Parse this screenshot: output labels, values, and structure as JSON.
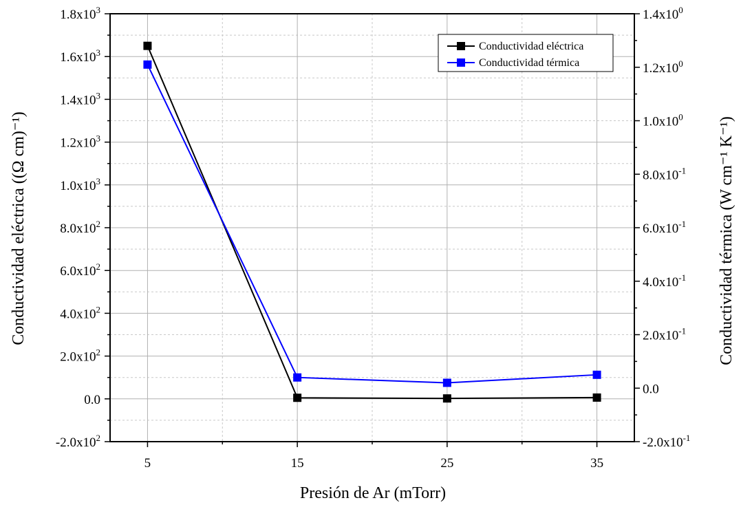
{
  "chart_data": {
    "type": "line",
    "x": [
      5,
      15,
      25,
      35
    ],
    "xlabel": "Presión de Ar (mTorr)",
    "x_ticks": [
      {
        "value": 5,
        "label": "5"
      },
      {
        "value": 15,
        "label": "15"
      },
      {
        "value": 25,
        "label": "25"
      },
      {
        "value": 35,
        "label": "35"
      }
    ],
    "xlim": [
      2.5,
      37.5
    ],
    "ylabel_left": "Conductividad eléctrica ((Ω cm)⁻¹)",
    "ylabel_right": "Conductividad térmica (W cm⁻¹ K⁻¹)",
    "ylim_left": [
      -200,
      1800
    ],
    "ylim_right": [
      -0.2,
      1.4
    ],
    "y_left_ticks": [
      {
        "value": 1800,
        "mant": "1.8x10",
        "exp": "3"
      },
      {
        "value": 1600,
        "mant": "1.6x10",
        "exp": "3"
      },
      {
        "value": 1400,
        "mant": "1.4x10",
        "exp": "3"
      },
      {
        "value": 1200,
        "mant": "1.2x10",
        "exp": "3"
      },
      {
        "value": 1000,
        "mant": "1.0x10",
        "exp": "3"
      },
      {
        "value": 800,
        "mant": "8.0x10",
        "exp": "2"
      },
      {
        "value": 600,
        "mant": "6.0x10",
        "exp": "2"
      },
      {
        "value": 400,
        "mant": "4.0x10",
        "exp": "2"
      },
      {
        "value": 200,
        "mant": "2.0x10",
        "exp": "2"
      },
      {
        "value": 0,
        "mant": "0.0",
        "exp": ""
      },
      {
        "value": -200,
        "mant": "-2.0x10",
        "exp": "2"
      }
    ],
    "y_right_ticks": [
      {
        "value": 1.4,
        "mant": "1.4x10",
        "exp": "0"
      },
      {
        "value": 1.2,
        "mant": "1.2x10",
        "exp": "0"
      },
      {
        "value": 1.0,
        "mant": "1.0x10",
        "exp": "0"
      },
      {
        "value": 0.8,
        "mant": "8.0x10",
        "exp": "-1"
      },
      {
        "value": 0.6,
        "mant": "6.0x10",
        "exp": "-1"
      },
      {
        "value": 0.4,
        "mant": "4.0x10",
        "exp": "-1"
      },
      {
        "value": 0.2,
        "mant": "2.0x10",
        "exp": "-1"
      },
      {
        "value": 0.0,
        "mant": "0.0",
        "exp": ""
      },
      {
        "value": -0.2,
        "mant": "-2.0x10",
        "exp": "-1"
      }
    ],
    "grid": true,
    "legend_position": "top-right",
    "series": [
      {
        "name": "Conductividad eléctrica",
        "axis": "left",
        "color": "#000000",
        "values": [
          1650,
          5,
          2,
          6
        ]
      },
      {
        "name": "Conductividad térmica",
        "axis": "right",
        "color": "#0000ff",
        "values": [
          1.21,
          0.04,
          0.02,
          0.05
        ]
      }
    ]
  }
}
